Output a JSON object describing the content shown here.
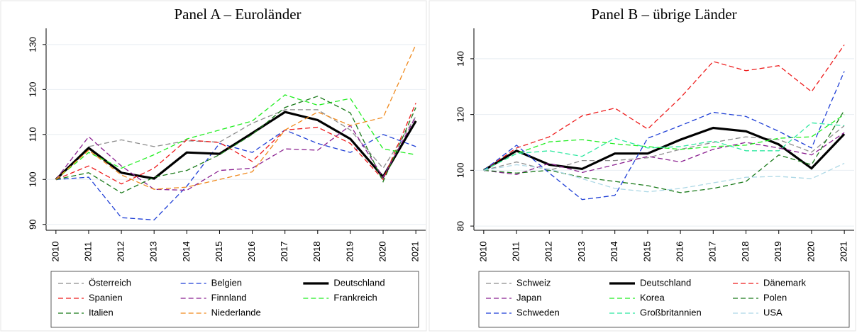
{
  "chart_data": [
    {
      "type": "line",
      "title": "Panel A – Euroländer",
      "x": [
        2010,
        2011,
        2012,
        2013,
        2014,
        2015,
        2016,
        2017,
        2018,
        2019,
        2020,
        2021
      ],
      "xlim": [
        2009.7,
        2021.3
      ],
      "xticks": [
        2010,
        2011,
        2012,
        2013,
        2014,
        2015,
        2016,
        2017,
        2018,
        2019,
        2020,
        2021
      ],
      "ylim": [
        88.7,
        133.6
      ],
      "yticks": [
        90,
        100,
        110,
        120,
        130
      ],
      "grid": true,
      "series": [
        {
          "name": "Österreich",
          "color": "#8c8c8c",
          "dash": true,
          "values": [
            100,
            107.3,
            108.8,
            107.3,
            108.6,
            108.3,
            112.5,
            115.5,
            115.5,
            111,
            102.5,
            114
          ]
        },
        {
          "name": "Belgien",
          "color": "#1f3fd6",
          "dash": true,
          "values": [
            100,
            100.5,
            91.5,
            91,
            98.5,
            108,
            106,
            111,
            108,
            106,
            110,
            107.3
          ]
        },
        {
          "name": "Deutschland",
          "color": "#000000",
          "dash": false,
          "values": [
            100,
            107,
            101.5,
            100.2,
            106,
            105.7,
            110.3,
            115,
            113.2,
            109,
            100.6,
            113
          ]
        },
        {
          "name": "Spanien",
          "color": "#ee1c1c",
          "dash": true,
          "values": [
            100,
            103,
            99,
            102.5,
            108.8,
            108.2,
            104,
            111,
            111.6,
            108,
            100,
            117
          ]
        },
        {
          "name": "Finnland",
          "color": "#8b2090",
          "dash": true,
          "values": [
            100,
            109.5,
            103,
            97.8,
            97.6,
            102,
            102.5,
            106.8,
            106.5,
            112,
            100.5,
            114
          ]
        },
        {
          "name": "Frankreich",
          "color": "#22ee22",
          "dash": true,
          "values": [
            100,
            106,
            102.5,
            105.5,
            109,
            111,
            113,
            118.8,
            116.5,
            118,
            106.8,
            105.5
          ]
        },
        {
          "name": "Italien",
          "color": "#1a7a1a",
          "dash": true,
          "values": [
            100,
            101.5,
            97,
            100.5,
            102,
            105.5,
            110,
            116,
            118.5,
            114.8,
            99.5,
            116
          ]
        },
        {
          "name": "Niederlande",
          "color": "#f08a1e",
          "dash": true,
          "values": [
            100,
            106.5,
            101,
            97.8,
            98.3,
            100,
            101.7,
            111,
            115,
            112,
            113.8,
            130
          ]
        }
      ]
    },
    {
      "type": "line",
      "title": "Panel B – übrige Länder",
      "x": [
        2010,
        2011,
        2012,
        2013,
        2014,
        2015,
        2016,
        2017,
        2018,
        2019,
        2020,
        2021
      ],
      "xlim": [
        2009.7,
        2021.3
      ],
      "xticks": [
        2010,
        2011,
        2012,
        2013,
        2014,
        2015,
        2016,
        2017,
        2018,
        2019,
        2020,
        2021
      ],
      "ylim": [
        78.5,
        150.9
      ],
      "yticks": [
        80,
        100,
        120,
        140
      ],
      "grid": true,
      "series": [
        {
          "name": "Schweiz",
          "color": "#8c8c8c",
          "dash": true,
          "values": [
            100,
            103,
            100,
            103.5,
            103.5,
            104.5,
            107.5,
            110,
            112,
            111,
            106.5,
            116
          ]
        },
        {
          "name": "Deutschland",
          "color": "#000000",
          "dash": false,
          "values": [
            100,
            107,
            102,
            100.5,
            106,
            106,
            111,
            115.2,
            114,
            109.3,
            100.7,
            113
          ]
        },
        {
          "name": "Dänemark",
          "color": "#ee1c1c",
          "dash": true,
          "values": [
            100,
            108,
            112,
            119.5,
            122.3,
            114.8,
            126,
            139,
            135.7,
            137.5,
            128.2,
            145
          ]
        },
        {
          "name": "Japan",
          "color": "#8b2090",
          "dash": true,
          "values": [
            100,
            98.5,
            102.5,
            99.2,
            102,
            105,
            103,
            107.5,
            110,
            108,
            105.5,
            113.5
          ]
        },
        {
          "name": "Korea",
          "color": "#22ee22",
          "dash": true,
          "values": [
            100,
            106,
            110.2,
            111,
            109.5,
            108.5,
            107.5,
            108.5,
            109,
            111.5,
            112,
            120
          ]
        },
        {
          "name": "Polen",
          "color": "#1a7a1a",
          "dash": true,
          "values": [
            100,
            99,
            100,
            97.5,
            96,
            94.5,
            92,
            93.5,
            96,
            105.5,
            102,
            121.5
          ]
        },
        {
          "name": "Schweden",
          "color": "#1f3fd6",
          "dash": true,
          "values": [
            100,
            109,
            99,
            89.5,
            91,
            111.5,
            116,
            120.8,
            119.3,
            114,
            108,
            135.5
          ]
        },
        {
          "name": "Großbritannien",
          "color": "#2ee8a0",
          "dash": true,
          "values": [
            100,
            106,
            107,
            105,
            111.5,
            108,
            108.5,
            110.5,
            107,
            107,
            117,
            116
          ]
        },
        {
          "name": "USA",
          "color": "#add8e6",
          "dash": true,
          "values": [
            100,
            102,
            100.5,
            97,
            93.5,
            92.3,
            93.5,
            95.5,
            97.5,
            97.8,
            97,
            102.5
          ]
        }
      ]
    }
  ]
}
